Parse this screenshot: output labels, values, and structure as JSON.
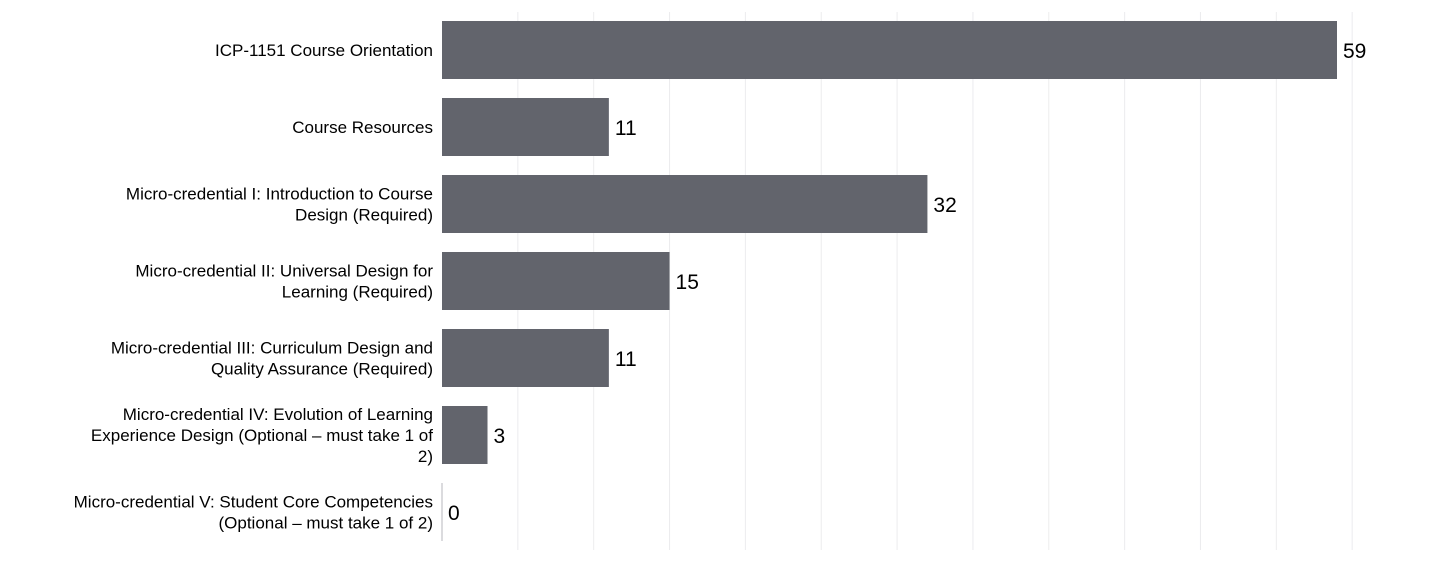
{
  "chart_data": {
    "type": "bar",
    "orientation": "horizontal",
    "categories": [
      [
        "ICP-1151 Course Orientation"
      ],
      [
        "Course Resources"
      ],
      [
        "Micro-credential I: Introduction to Course",
        "Design (Required)"
      ],
      [
        "Micro-credential II: Universal Design for",
        "Learning (Required)"
      ],
      [
        "Micro-credential III: Curriculum Design and",
        "Quality Assurance (Required)"
      ],
      [
        "Micro-credential IV: Evolution of Learning",
        "Experience Design (Optional – must take 1 of",
        "2)"
      ],
      [
        "Micro-credential V: Student Core Competencies",
        "(Optional – must take 1 of 2)"
      ]
    ],
    "values": [
      59,
      11,
      32,
      15,
      11,
      3,
      0
    ],
    "title": "",
    "xlabel": "",
    "ylabel": "",
    "xlim": [
      0,
      65
    ],
    "grid": "vertical",
    "legend": "none",
    "colors": {
      "bar": "#62646c",
      "grid": "#ececee",
      "axis": "#cfcfd2",
      "text": "#000000"
    }
  }
}
